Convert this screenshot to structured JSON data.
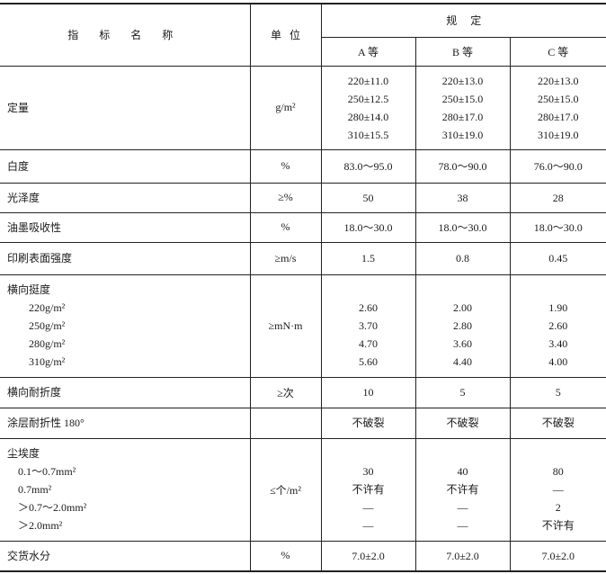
{
  "header": {
    "name": "指 标 名 称",
    "unit": "单   位",
    "spec": "规     定",
    "grades": [
      "A 等",
      "B 等",
      "C 等"
    ]
  },
  "rows": [
    {
      "name": [
        "定量"
      ],
      "unit": "g/m²",
      "a": [
        "220±11.0",
        "250±12.5",
        "280±14.0",
        "310±15.5"
      ],
      "b": [
        "220±13.0",
        "250±15.0",
        "280±17.0",
        "310±19.0"
      ],
      "c": [
        "220±13.0",
        "250±15.0",
        "280±17.0",
        "310±19.0"
      ]
    },
    {
      "name": [
        "白度"
      ],
      "unit": "%",
      "a": [
        "83.0～95.0"
      ],
      "b": [
        "78.0～90.0"
      ],
      "c": [
        "76.0～90.0"
      ]
    },
    {
      "name": [
        "光泽度"
      ],
      "unit": "≥%",
      "a": [
        "50"
      ],
      "b": [
        "38"
      ],
      "c": [
        "28"
      ]
    },
    {
      "name": [
        "油墨吸收性"
      ],
      "unit": "%",
      "a": [
        "18.0～30.0"
      ],
      "b": [
        "18.0～30.0"
      ],
      "c": [
        "18.0～30.0"
      ]
    },
    {
      "name": [
        "印刷表面强度"
      ],
      "unit": "≥m/s",
      "a": [
        "1.5"
      ],
      "b": [
        "0.8"
      ],
      "c": [
        "0.45"
      ]
    },
    {
      "name": [
        "横向挺度",
        "220g/m²",
        "250g/m²",
        "280g/m²",
        "310g/m²"
      ],
      "unit": "≥mN·m",
      "a": [
        "2.60",
        "3.70",
        "4.70",
        "5.60"
      ],
      "b": [
        "2.00",
        "2.80",
        "3.60",
        "4.40"
      ],
      "c": [
        "1.90",
        "2.60",
        "3.40",
        "4.00"
      ]
    },
    {
      "name": [
        "横向耐折度"
      ],
      "unit": "≥次",
      "a": [
        "10"
      ],
      "b": [
        "5"
      ],
      "c": [
        "5"
      ]
    },
    {
      "name": [
        "涂层耐折性 180°"
      ],
      "unit": "",
      "a": [
        "不破裂"
      ],
      "b": [
        "不破裂"
      ],
      "c": [
        "不破裂"
      ]
    },
    {
      "name": [
        "尘埃度",
        "0.1～0.7mm²",
        "0.7mm²",
        "＞0.7～2.0mm²",
        "＞2.0mm²"
      ],
      "unit": "≤个/m²",
      "a": [
        "30",
        "不许有",
        "—",
        "—"
      ],
      "b": [
        "40",
        "不许有",
        "—",
        "—"
      ],
      "c": [
        "80",
        "—",
        "2",
        "不许有"
      ]
    },
    {
      "name": [
        "交货水分"
      ],
      "unit": "%",
      "a": [
        "7.0±2.0"
      ],
      "b": [
        "7.0±2.0"
      ],
      "c": [
        "7.0±2.0"
      ]
    }
  ]
}
